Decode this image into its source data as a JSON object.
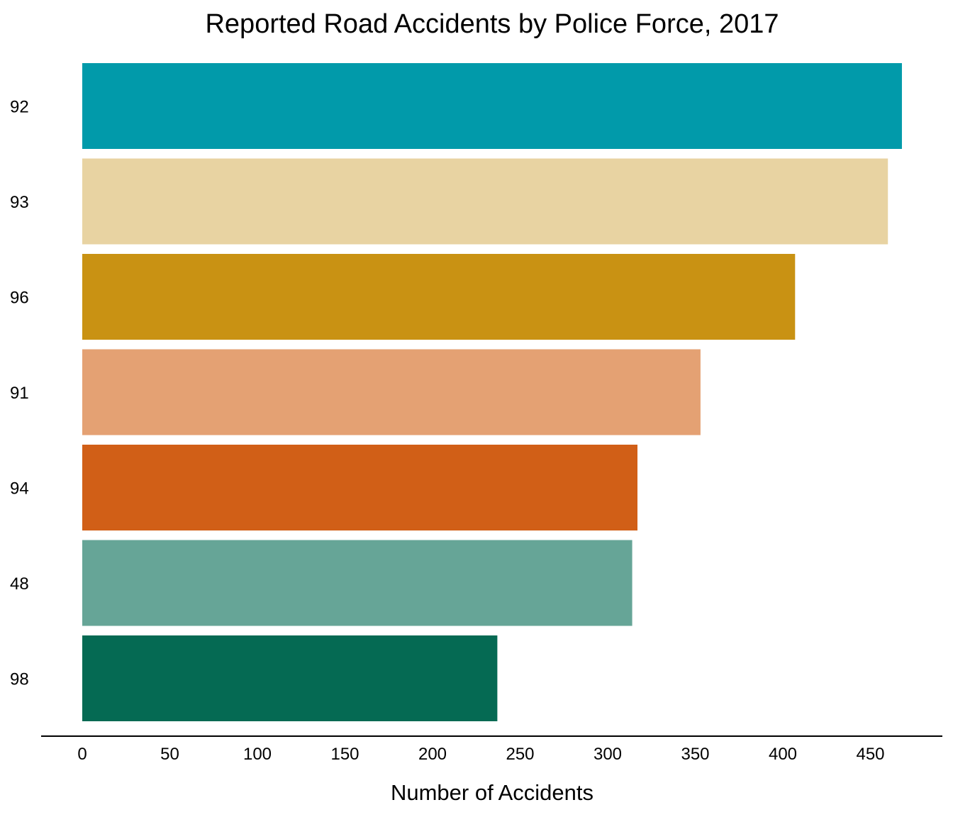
{
  "chart_data": {
    "type": "bar",
    "orientation": "horizontal",
    "title": "Reported Road Accidents by Police Force, 2017",
    "xlabel": "Number of Accidents",
    "ylabel": "",
    "categories": [
      "92",
      "93",
      "96",
      "91",
      "94",
      "48",
      "98"
    ],
    "values": [
      468,
      460,
      407,
      353,
      317,
      314,
      237
    ],
    "colors": [
      "#019aaa",
      "#e8d3a2",
      "#c99213",
      "#e4a173",
      "#d15f17",
      "#66a597",
      "#056a53"
    ],
    "xlim": [
      0,
      470
    ],
    "xticks": [
      0,
      50,
      100,
      150,
      200,
      250,
      300,
      350,
      400,
      450
    ],
    "grid": false,
    "legend": "none"
  }
}
